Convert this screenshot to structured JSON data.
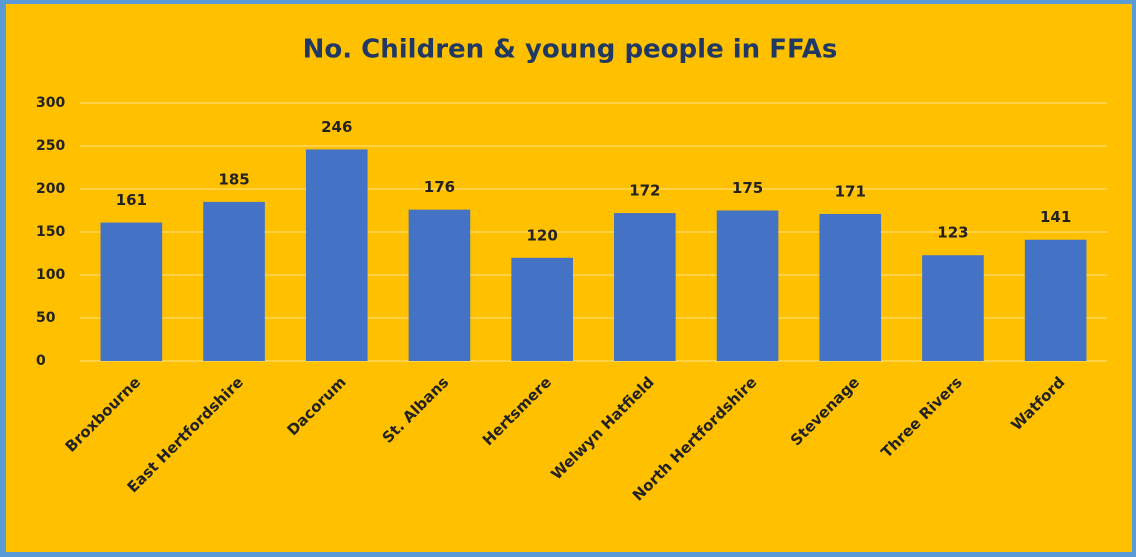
{
  "chart_data": {
    "type": "bar",
    "title": "No. Children & young people in FFAs",
    "categories": [
      "Broxbourne",
      "East Hertfordshire",
      "Dacorum",
      "St. Albans",
      "Hertsmere",
      "Welwyn Hatfield",
      "North Hertfordshire",
      "Stevenage",
      "Three Rivers",
      "Watford"
    ],
    "values": [
      161,
      185,
      246,
      176,
      120,
      172,
      175,
      171,
      123,
      141
    ],
    "color": "#4472c4",
    "ylim": [
      0,
      300
    ],
    "yticks": [
      0,
      50,
      100,
      150,
      200,
      250,
      300
    ],
    "grid": true
  }
}
